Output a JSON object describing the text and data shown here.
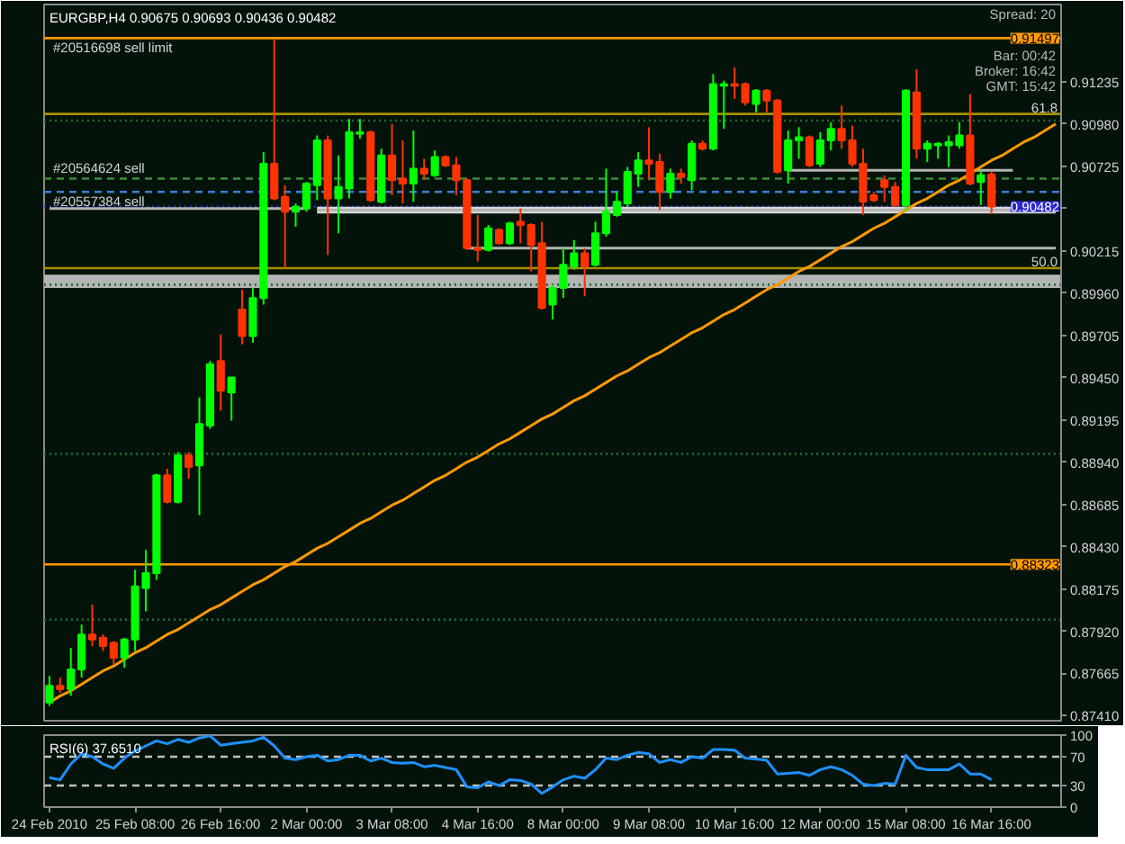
{
  "chart_data": [
    {
      "type": "candlestick",
      "title": "EURGBP,H4 0.90675 0.90693 0.90436 0.90482",
      "ylim": [
        0.8738,
        0.917
      ],
      "tick_labels": "y",
      "categories": [
        "24 Feb 2010",
        null,
        null,
        null,
        null,
        null,
        null,
        null,
        "25 Feb 08:00",
        null,
        null,
        null,
        null,
        null,
        null,
        null,
        "26 Feb 16:00",
        null,
        null,
        null,
        null,
        null,
        null,
        null,
        "2 Mar 00:00",
        null,
        null,
        null,
        null,
        null,
        null,
        null,
        "3 Mar 08:00",
        null,
        null,
        null,
        null,
        null,
        null,
        null,
        "4 Mar 16:00",
        null,
        null,
        null,
        null,
        null,
        null,
        null,
        "8 Mar 00:00",
        null,
        null,
        null,
        null,
        null,
        null,
        null,
        "9 Mar 08:00",
        null,
        null,
        null,
        null,
        null,
        null,
        null,
        "10 Mar 16:00",
        null,
        null,
        null,
        null,
        null,
        null,
        null,
        "12 Mar 00:00",
        null,
        null,
        null,
        null,
        null,
        null,
        null,
        "15 Mar 08:00",
        null,
        null,
        null,
        null,
        null,
        null,
        null,
        "16 Mar 16:00",
        null,
        null,
        null,
        null,
        null,
        null
      ],
      "yticks": [
        0.91235,
        {
          "value": 0.9098,
          "label": "0.90980"
        },
        0.90725,
        {
          "value": 0.9047,
          "label": null
        },
        0.90215,
        {
          "value": 0.8996,
          "label": "0.89960"
        },
        0.89705,
        {
          "value": 0.8945,
          "label": "0.89450"
        },
        0.89195,
        {
          "value": 0.8894,
          "label": "0.88940"
        },
        0.88685,
        {
          "value": 0.8843,
          "label": "0.88430"
        },
        0.88175,
        {
          "value": 0.8792,
          "label": "0.87920"
        },
        0.87665,
        {
          "value": 0.8741,
          "label": "0.87410"
        }
      ],
      "bands": [
        {
          "axis": "y",
          "from": 0.8999,
          "to": 0.9007,
          "color": "#b4b4b4"
        }
      ],
      "ref_lines": [
        {
          "axis": "y",
          "value": 0.91497,
          "label": "0.91497",
          "color": "#ff9900"
        },
        {
          "axis": "y",
          "value": 0.9104,
          "color": "#a89000"
        },
        {
          "axis": "y",
          "value": 0.91,
          "color": "#1d6b32",
          "line_style": "dotted"
        },
        {
          "axis": "y",
          "value": 0.9065,
          "color": "#3c8c3c",
          "line_style": "dashed"
        },
        {
          "axis": "y",
          "value": 0.9057,
          "color": "#3a7fd5",
          "line_style": "dashed"
        },
        {
          "axis": "y",
          "value": 0.90482,
          "label": "0.90482",
          "color": "#2a2ad0",
          "line_style": "dotted"
        },
        {
          "axis": "y",
          "value": 0.9011,
          "color": "#a89000"
        },
        {
          "axis": "y",
          "value": 0.9001,
          "color": "#1d6b32",
          "line_style": "dotted"
        },
        {
          "axis": "y",
          "value": 0.8899,
          "color": "#1d6b32",
          "line_style": "dotted"
        },
        {
          "axis": "y",
          "value": 0.88323,
          "label": "0.88323",
          "color": "#ff9900"
        },
        {
          "axis": "y",
          "value": 0.8799,
          "color": "#1d6b32",
          "line_style": "dotted"
        }
      ],
      "annotations": [
        {
          "text": "#20516698 sell limit",
          "x": "24 Feb 2010",
          "y": 0.91497
        },
        {
          "text": "#20564624 sell",
          "x": "24 Feb 2010",
          "y": 0.9065
        },
        {
          "text": "#20557384 sell",
          "x": "24 Feb 2010",
          "y": 0.9057
        },
        {
          "text": "61.8",
          "y": 0.9104
        },
        {
          "text": "50.0",
          "y": 0.9011
        },
        "Spread: 20",
        "Bar: 00:42",
        "Broker: 16:42",
        "GMT: 15:42"
      ],
      "series": [
        {
          "type": "line",
          "color": "#b4b4b4",
          "values": [
            0.9047,
            0.9047,
            0.9047,
            0.9047,
            0.9047,
            0.9047,
            0.9047,
            0.9047,
            0.9047,
            0.9047,
            0.9047,
            0.9047,
            0.9047,
            0.9047,
            0.9047,
            0.9047,
            0.9047,
            0.9047,
            0.9047,
            0.9047,
            0.9047,
            0.9047,
            0.9047,
            0.9047,
            0.9047,
            null,
            null,
            null,
            null,
            null,
            null,
            null,
            null,
            null,
            null,
            null,
            null,
            null,
            null,
            null,
            null,
            null,
            null,
            null,
            null,
            null,
            null,
            null,
            null,
            null,
            null,
            null,
            null,
            null,
            null,
            null,
            null,
            null,
            null,
            null,
            null,
            null,
            null,
            null,
            null,
            null,
            null,
            null,
            null,
            null,
            null,
            null,
            null,
            null,
            null,
            null,
            null,
            null,
            null,
            null,
            null,
            null,
            null,
            null,
            null,
            null,
            null,
            null,
            null,
            null,
            null,
            null,
            null,
            null,
            null
          ]
        },
        {
          "type": "line",
          "color": "#b4b4b4",
          "values": [
            null,
            null,
            null,
            null,
            null,
            null,
            null,
            null,
            null,
            null,
            null,
            null,
            null,
            null,
            null,
            null,
            null,
            null,
            null,
            null,
            null,
            null,
            null,
            null,
            null,
            0.9046,
            0.9046,
            0.9046,
            0.9046,
            0.9046,
            0.9046,
            0.9046,
            0.9046,
            0.9046,
            0.9046,
            0.9046,
            0.9046,
            0.9046,
            0.9046,
            0.9046,
            0.9046,
            0.9046,
            0.9046,
            0.9046,
            0.9046,
            0.9046,
            0.9046,
            0.9046,
            0.9046,
            0.9046,
            0.9046,
            0.9046,
            0.9046,
            0.9046,
            0.9046,
            0.9046,
            0.9046,
            0.9046,
            0.9046,
            0.9046,
            0.9046,
            0.9046,
            0.9046,
            0.9046,
            0.9046,
            0.9046,
            0.9046,
            0.9046,
            0.9046,
            0.9046,
            0.9046,
            0.9046,
            0.9046,
            0.9046,
            0.9046,
            0.9046,
            0.9046,
            0.9046,
            0.9046,
            0.9046,
            0.9046,
            0.9046,
            0.9046,
            0.9046,
            0.9046,
            0.9046,
            0.9046,
            0.9046,
            0.9046,
            0.9046,
            0.9046,
            0.9046,
            0.9046,
            0.9046,
            0.9046
          ],
          "lower": [
            null,
            null,
            null,
            null,
            null,
            null,
            null,
            null,
            null,
            null,
            null,
            null,
            null,
            null,
            null,
            null,
            null,
            null,
            null,
            null,
            null,
            null,
            null,
            null,
            null,
            0.9044,
            0.9044,
            0.9044,
            0.9044,
            0.9044,
            0.9044,
            0.9044,
            0.9044,
            0.9044,
            0.9044,
            0.9044,
            0.9044,
            0.9044,
            0.9044,
            0.9044,
            0.9044,
            0.9044,
            0.9044,
            0.9044,
            0.9044,
            0.9044,
            0.9044,
            0.9044,
            0.9044,
            0.9044,
            0.9044,
            0.9044,
            0.9044,
            0.9044,
            0.9044,
            0.9044,
            0.9044,
            0.9044,
            0.9044,
            0.9044,
            0.9044,
            0.9044,
            0.9044,
            0.9044,
            0.9044,
            0.9044,
            0.9044,
            0.9044,
            0.9044,
            0.9044,
            0.9044,
            0.9044,
            0.9044,
            0.9044,
            0.9044,
            0.9044,
            0.9044,
            0.9044,
            0.9044,
            0.9044,
            0.9044,
            0.9044,
            0.9044,
            0.9044,
            0.9044,
            0.9044,
            0.9044,
            0.9044,
            0.9044,
            0.9044,
            0.9044,
            0.9044,
            0.9044,
            0.9044,
            0.9044
          ],
          "upper": [
            null,
            null,
            null,
            null,
            null,
            null,
            null,
            null,
            null,
            null,
            null,
            null,
            null,
            null,
            null,
            null,
            null,
            null,
            null,
            null,
            null,
            null,
            null,
            null,
            null,
            0.9048,
            0.9048,
            0.9048,
            0.9048,
            0.9048,
            0.9048,
            0.9048,
            0.9048,
            0.9048,
            0.9048,
            0.9048,
            0.9048,
            0.9048,
            0.9048,
            0.9048,
            0.9048,
            0.9048,
            0.9048,
            0.9048,
            0.9048,
            0.9048,
            0.9048,
            0.9048,
            0.9048,
            0.9048,
            0.9048,
            0.9048,
            0.9048,
            0.9048,
            0.9048,
            0.9048,
            0.9048,
            0.9048,
            0.9048,
            0.9048,
            0.9048,
            0.9048,
            0.9048,
            0.9048,
            0.9048,
            0.9048,
            0.9048,
            0.9048,
            0.9048,
            0.9048,
            0.9048,
            0.9048,
            0.9048,
            0.9048,
            0.9048,
            0.9048,
            0.9048,
            0.9048,
            0.9048,
            0.9048,
            0.9048,
            0.9048,
            0.9048,
            0.9048,
            0.9048,
            0.9048,
            0.9048,
            0.9048,
            0.9048,
            0.9048,
            0.9048,
            0.9048,
            0.9048,
            0.9048,
            0.9048
          ]
        },
        {
          "type": "line",
          "color": "#b4b4b4",
          "values": [
            null,
            null,
            null,
            null,
            null,
            null,
            null,
            null,
            null,
            null,
            null,
            null,
            null,
            null,
            null,
            null,
            null,
            null,
            null,
            null,
            null,
            null,
            null,
            null,
            null,
            null,
            null,
            null,
            null,
            null,
            null,
            null,
            null,
            null,
            null,
            null,
            null,
            null,
            null,
            0.9023,
            0.9023,
            0.9023,
            0.9023,
            0.9023,
            0.9023,
            0.9023,
            0.9023,
            0.9023,
            0.9023,
            0.9023,
            0.9023,
            0.9023,
            0.9023,
            0.9023,
            0.9023,
            0.9023,
            0.9023,
            0.9023,
            0.9023,
            0.9023,
            0.9023,
            0.9023,
            0.9023,
            0.9023,
            0.9023,
            0.9023,
            0.9023,
            0.9023,
            0.9023,
            0.9023,
            0.9023,
            0.9023,
            0.9023,
            0.9023,
            0.9023,
            0.9023,
            0.9023,
            0.9023,
            0.9023,
            0.9023,
            0.9023,
            0.9023,
            0.9023,
            0.9023,
            0.9023,
            0.9023,
            0.9023,
            0.9023,
            0.9023,
            0.9023,
            0.9023,
            0.9023,
            0.9023,
            0.9023,
            0.9023
          ]
        },
        {
          "type": "line",
          "color": "#b4b4b4",
          "values": [
            null,
            null,
            null,
            null,
            null,
            null,
            null,
            null,
            null,
            null,
            null,
            null,
            null,
            null,
            null,
            null,
            null,
            null,
            null,
            null,
            null,
            null,
            null,
            null,
            null,
            null,
            null,
            null,
            null,
            null,
            null,
            null,
            null,
            null,
            null,
            null,
            null,
            null,
            null,
            null,
            null,
            null,
            null,
            null,
            null,
            null,
            null,
            null,
            null,
            null,
            null,
            null,
            null,
            null,
            null,
            null,
            null,
            null,
            null,
            null,
            null,
            null,
            null,
            null,
            null,
            null,
            null,
            null,
            null,
            0.907,
            0.907,
            0.907,
            0.907,
            0.907,
            0.907,
            0.907,
            0.907,
            0.907,
            0.907,
            0.907,
            0.907,
            0.907,
            0.907,
            0.907,
            0.907,
            0.907,
            0.907,
            0.907,
            0.907,
            0.907,
            0.907,
            null,
            null,
            null,
            null
          ]
        },
        {
          "type": "line",
          "color": "#ff9900",
          "values": [
            0.8749,
            0.8753,
            0.8756,
            0.876,
            0.8764,
            0.8768,
            0.8771,
            0.8775,
            0.8779,
            0.8782,
            0.8786,
            0.879,
            0.8793,
            0.8797,
            0.8801,
            0.8805,
            0.8808,
            0.8812,
            0.8816,
            0.882,
            0.8823,
            0.8827,
            0.8831,
            0.8834,
            0.8838,
            0.8842,
            0.8845,
            0.8849,
            0.8853,
            0.8857,
            0.886,
            0.8864,
            0.8868,
            0.8871,
            0.8875,
            0.8879,
            0.8883,
            0.8886,
            0.889,
            0.8894,
            0.8897,
            0.8901,
            0.8905,
            0.8908,
            0.8912,
            0.8916,
            0.892,
            0.8923,
            0.8927,
            0.8931,
            0.8934,
            0.8938,
            0.8942,
            0.8946,
            0.8949,
            0.8953,
            0.8957,
            0.896,
            0.8964,
            0.8968,
            0.8972,
            0.8975,
            0.8979,
            0.8983,
            0.8986,
            0.899,
            0.8994,
            0.8998,
            0.9001,
            0.9005,
            0.9009,
            0.9012,
            0.9016,
            0.902,
            0.9024,
            0.9027,
            0.9031,
            0.9035,
            0.9038,
            0.9042,
            0.9046,
            0.905,
            0.9053,
            0.9057,
            0.9061,
            0.9064,
            0.9068,
            0.9072,
            0.9076,
            0.9079,
            0.9083,
            0.9087,
            0.909,
            0.9094,
            0.9098
          ]
        },
        {
          "type": "candlestick",
          "ohlc": [
            [
              0.8749,
              0.8765,
              0.8747,
              0.8759
            ],
            [
              0.8759,
              0.8764,
              0.8755,
              0.8757
            ],
            [
              0.8757,
              0.8782,
              0.8753,
              0.8769
            ],
            [
              0.8769,
              0.8796,
              0.8764,
              0.879
            ],
            [
              0.879,
              0.8808,
              0.8783,
              0.8787
            ],
            [
              0.8788,
              0.879,
              0.878,
              0.8783
            ],
            [
              0.8785,
              0.8786,
              0.8772,
              0.8776
            ],
            [
              0.8776,
              0.8788,
              0.877,
              0.8787
            ],
            [
              0.8787,
              0.8829,
              0.878,
              0.8819
            ],
            [
              0.8818,
              0.8841,
              0.8804,
              0.8827
            ],
            [
              0.8827,
              0.8887,
              0.8823,
              0.8886
            ],
            [
              0.8886,
              0.889,
              0.8869,
              0.887
            ],
            [
              0.887,
              0.89,
              0.8869,
              0.8898
            ],
            [
              0.8898,
              0.89,
              0.8884,
              0.8891
            ],
            [
              0.8892,
              0.8933,
              0.8862,
              0.8917
            ],
            [
              0.8916,
              0.8955,
              0.8914,
              0.8953
            ],
            [
              0.8955,
              0.8971,
              0.8925,
              0.8937
            ],
            [
              0.8936,
              0.8945,
              0.8919,
              0.8945
            ],
            [
              0.8986,
              0.8998,
              0.8965,
              0.897
            ],
            [
              0.897,
              0.8999,
              0.8966,
              0.8993
            ],
            [
              0.8993,
              0.9081,
              0.8989,
              0.9074
            ],
            [
              0.9074,
              0.9149,
              0.9052,
              0.9053
            ],
            [
              0.9054,
              0.9061,
              0.9011,
              0.9045
            ],
            [
              0.9045,
              0.905,
              0.9036,
              0.9048
            ],
            [
              0.9047,
              0.9063,
              0.9045,
              0.9062
            ],
            [
              0.9061,
              0.9091,
              0.9052,
              0.9088
            ],
            [
              0.9088,
              0.9091,
              0.9019,
              0.9053
            ],
            [
              0.9053,
              0.9079,
              0.9032,
              0.906
            ],
            [
              0.9059,
              0.9101,
              0.9053,
              0.9093
            ],
            [
              0.9092,
              0.9101,
              0.9089,
              0.9093
            ],
            [
              0.9093,
              0.9094,
              0.9051,
              0.9052
            ],
            [
              0.9051,
              0.9083,
              0.905,
              0.9079
            ],
            [
              0.9079,
              0.9098,
              0.9055,
              0.9064
            ],
            [
              0.9065,
              0.9088,
              0.905,
              0.9062
            ],
            [
              0.9062,
              0.9094,
              0.9051,
              0.9071
            ],
            [
              0.9071,
              0.9077,
              0.9065,
              0.9068
            ],
            [
              0.9067,
              0.9082,
              0.9066,
              0.9078
            ],
            [
              0.9078,
              0.9079,
              0.9072,
              0.9073
            ],
            [
              0.9073,
              0.9078,
              0.9055,
              0.9064
            ],
            [
              0.9064,
              0.9065,
              0.9022,
              0.9023
            ],
            [
              0.9023,
              0.9043,
              0.9015,
              0.9022
            ],
            [
              0.9022,
              0.9037,
              0.9021,
              0.9035
            ],
            [
              0.9034,
              0.9035,
              0.9025,
              0.9026
            ],
            [
              0.9026,
              0.9039,
              0.9025,
              0.9038
            ],
            [
              0.9039,
              0.9047,
              0.9026,
              0.9037
            ],
            [
              0.9037,
              0.9038,
              0.9009,
              0.9025
            ],
            [
              0.9026,
              0.9039,
              0.8986,
              0.8987
            ],
            [
              0.8989,
              0.9001,
              0.898,
              0.8999
            ],
            [
              0.8999,
              0.9023,
              0.8993,
              0.9013
            ],
            [
              0.9012,
              0.9028,
              0.901,
              0.902
            ],
            [
              0.902,
              0.9023,
              0.8994,
              0.9012
            ],
            [
              0.9013,
              0.9039,
              0.9012,
              0.9032
            ],
            [
              0.9032,
              0.9071,
              0.903,
              0.9045
            ],
            [
              0.9043,
              0.9057,
              0.9042,
              0.9051
            ],
            [
              0.905,
              0.9072,
              0.9048,
              0.9069
            ],
            [
              0.9068,
              0.9081,
              0.906,
              0.9076
            ],
            [
              0.9076,
              0.9096,
              0.9064,
              0.9074
            ],
            [
              0.9075,
              0.908,
              0.9046,
              0.9057
            ],
            [
              0.9057,
              0.9071,
              0.9053,
              0.9068
            ],
            [
              0.9068,
              0.9071,
              0.9062,
              0.9066
            ],
            [
              0.9064,
              0.9088,
              0.9058,
              0.9086
            ],
            [
              0.9086,
              0.9088,
              0.9082,
              0.9083
            ],
            [
              0.9083,
              0.9128,
              0.9082,
              0.9122
            ],
            [
              0.9121,
              0.9124,
              0.9095,
              0.9122
            ],
            [
              0.9122,
              0.9132,
              0.9113,
              0.9121
            ],
            [
              0.9122,
              0.9123,
              0.9109,
              0.9111
            ],
            [
              0.911,
              0.9119,
              0.9105,
              0.9118
            ],
            [
              0.9118,
              0.9119,
              0.9105,
              0.9112
            ],
            [
              0.9112,
              0.9113,
              0.9068,
              0.9069
            ],
            [
              0.907,
              0.9094,
              0.9062,
              0.9088
            ],
            [
              0.9088,
              0.9096,
              0.9077,
              0.909
            ],
            [
              0.909,
              0.9091,
              0.9072,
              0.9073
            ],
            [
              0.9074,
              0.9093,
              0.9072,
              0.9088
            ],
            [
              0.9088,
              0.9099,
              0.9082,
              0.9095
            ],
            [
              0.9095,
              0.9109,
              0.9083,
              0.9088
            ],
            [
              0.9088,
              0.9097,
              0.9072,
              0.9074
            ],
            [
              0.9074,
              0.9083,
              0.9043,
              0.9051
            ],
            [
              0.9055,
              0.9057,
              0.9051,
              0.9052
            ],
            [
              0.9064,
              0.9067,
              0.9051,
              0.906
            ],
            [
              0.906,
              0.9063,
              0.9048,
              0.9049
            ],
            [
              0.9049,
              0.9119,
              0.9045,
              0.9118
            ],
            [
              0.9117,
              0.9131,
              0.9077,
              0.9083
            ],
            [
              0.9083,
              0.9088,
              0.9075,
              0.9086
            ],
            [
              0.9085,
              0.9087,
              0.9077,
              0.9086
            ],
            [
              0.9085,
              0.9091,
              0.9072,
              0.9087
            ],
            [
              0.9085,
              0.9099,
              0.9083,
              0.9091
            ],
            [
              0.9091,
              0.9116,
              0.9061,
              0.9062
            ],
            [
              0.9063,
              0.907,
              0.9049,
              0.9067
            ],
            [
              0.90675,
              0.90693,
              0.90436,
              0.90482
            ],
            null,
            null,
            null,
            null,
            null,
            null
          ],
          "colors": [
            "#00ff00",
            "#ff3300",
            "#00ff00",
            "#00ff00",
            "#ff3300",
            "#ff3300",
            "#ff3300",
            "#00ff00",
            "#00ff00",
            "#00ff00",
            "#00ff00",
            "#ff3300",
            "#00ff00",
            "#ff3300",
            "#00ff00",
            "#00ff00",
            "#ff3300",
            "#00ff00",
            "#ff3300",
            "#00ff00",
            "#00ff00",
            "#ff3300",
            "#ff3300",
            "#00ff00",
            "#00ff00",
            "#00ff00",
            "#ff3300",
            "#00ff00",
            "#00ff00",
            "#00ff00",
            "#ff3300",
            "#00ff00",
            "#ff3300",
            "#ff3300",
            "#00ff00",
            "#ff3300",
            "#00ff00",
            "#ff3300",
            "#ff3300",
            "#ff3300",
            "#ff3300",
            "#00ff00",
            "#ff3300",
            "#00ff00",
            "#ff3300",
            "#ff3300",
            "#ff3300",
            "#00ff00",
            "#00ff00",
            "#00ff00",
            "#ff3300",
            "#00ff00",
            "#00ff00",
            "#00ff00",
            "#00ff00",
            "#00ff00",
            "#ff3300",
            "#ff3300",
            "#00ff00",
            "#ff3300",
            "#00ff00",
            "#ff3300",
            "#00ff00",
            "#00ff00",
            "#ff3300",
            "#ff3300",
            "#00ff00",
            "#ff3300",
            "#ff3300",
            "#00ff00",
            "#00ff00",
            "#ff3300",
            "#00ff00",
            "#00ff00",
            "#ff3300",
            "#ff3300",
            "#ff3300",
            "#ff3300",
            "#ff3300",
            "#ff3300",
            "#00ff00",
            "#ff3300",
            "#00ff00",
            "#00ff00",
            "#00ff00",
            "#00ff00",
            "#ff3300",
            "#00ff00",
            "#ff3300",
            null,
            null,
            null,
            null,
            null,
            null
          ]
        }
      ]
    },
    {
      "type": "line",
      "title": "RSI(6) 37.6510",
      "ylim": [
        0,
        100
      ],
      "yticks": [
        0,
        30,
        70,
        100
      ],
      "categories": [
        "24 Feb 2010",
        null,
        null,
        null,
        null,
        null,
        null,
        null,
        "25 Feb 08:00",
        null,
        null,
        null,
        null,
        null,
        null,
        null,
        "26 Feb 16:00",
        null,
        null,
        null,
        null,
        null,
        null,
        null,
        "2 Mar 00:00",
        null,
        null,
        null,
        null,
        null,
        null,
        null,
        "3 Mar 08:00",
        null,
        null,
        null,
        null,
        null,
        null,
        null,
        "4 Mar 16:00",
        null,
        null,
        null,
        null,
        null,
        null,
        null,
        "8 Mar 00:00",
        null,
        null,
        null,
        null,
        null,
        null,
        null,
        "9 Mar 08:00",
        null,
        null,
        null,
        null,
        null,
        null,
        null,
        "10 Mar 16:00",
        null,
        null,
        null,
        null,
        null,
        null,
        null,
        "12 Mar 00:00",
        null,
        null,
        null,
        null,
        null,
        null,
        null,
        "15 Mar 08:00",
        null,
        null,
        null,
        null,
        null,
        null,
        null,
        "16 Mar 16:00",
        null,
        null,
        null,
        null,
        null,
        null
      ],
      "ref_lines": [
        {
          "axis": "y",
          "value": 70,
          "color": "#c0c0c0",
          "line_style": "dashed"
        },
        {
          "axis": "y",
          "value": 30,
          "color": "#c0c0c0",
          "line_style": "dashed"
        }
      ],
      "color": "#1e90ff",
      "values": [
        41,
        38,
        60,
        74,
        70,
        60,
        54,
        68,
        78,
        85,
        92,
        88,
        94,
        90,
        96,
        99,
        86,
        88,
        90,
        92,
        97,
        85,
        68,
        66,
        70,
        72,
        64,
        66,
        72,
        72,
        64,
        68,
        62,
        61,
        62,
        56,
        58,
        55,
        52,
        28,
        27,
        35,
        30,
        38,
        37,
        32,
        19,
        28,
        38,
        43,
        40,
        52,
        68,
        66,
        72,
        76,
        74,
        62,
        66,
        62,
        70,
        68,
        80,
        80,
        79,
        68,
        67,
        65,
        46,
        47,
        48,
        44,
        52,
        56,
        52,
        44,
        32,
        30,
        33,
        32,
        72,
        55,
        52,
        52,
        52,
        60,
        46,
        46,
        38,
        null,
        null,
        null,
        null,
        null,
        null
      ]
    }
  ]
}
